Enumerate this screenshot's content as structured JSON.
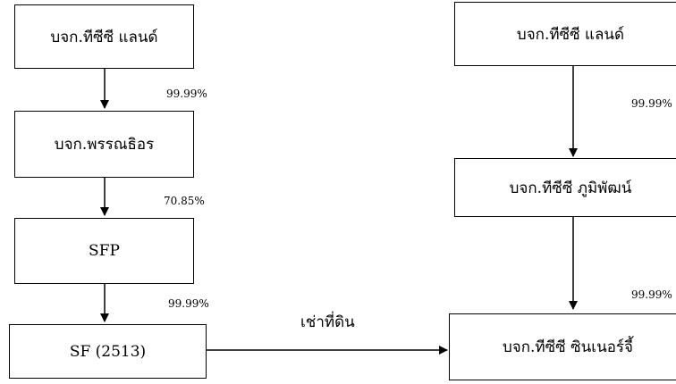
{
  "left_chain": {
    "box1": "บจก.ทีซีซี แลนด์",
    "pct1": "99.99%",
    "box2": "บจก.พรรณธิอร",
    "pct2": "70.85%",
    "box3": "SFP",
    "pct3": "99.99%",
    "box4": "SF (2513)"
  },
  "right_chain": {
    "box1": "บจก.ทีซีซี แลนด์",
    "pct1": "99.99%",
    "box2": "บจก.ทีซีซี ภูมิพัฒน์",
    "pct2": "99.99%",
    "box3": "บจก.ทีซีซี ซินเนอร์จี้"
  },
  "relation": {
    "label": "เช่าที่ดิน"
  }
}
